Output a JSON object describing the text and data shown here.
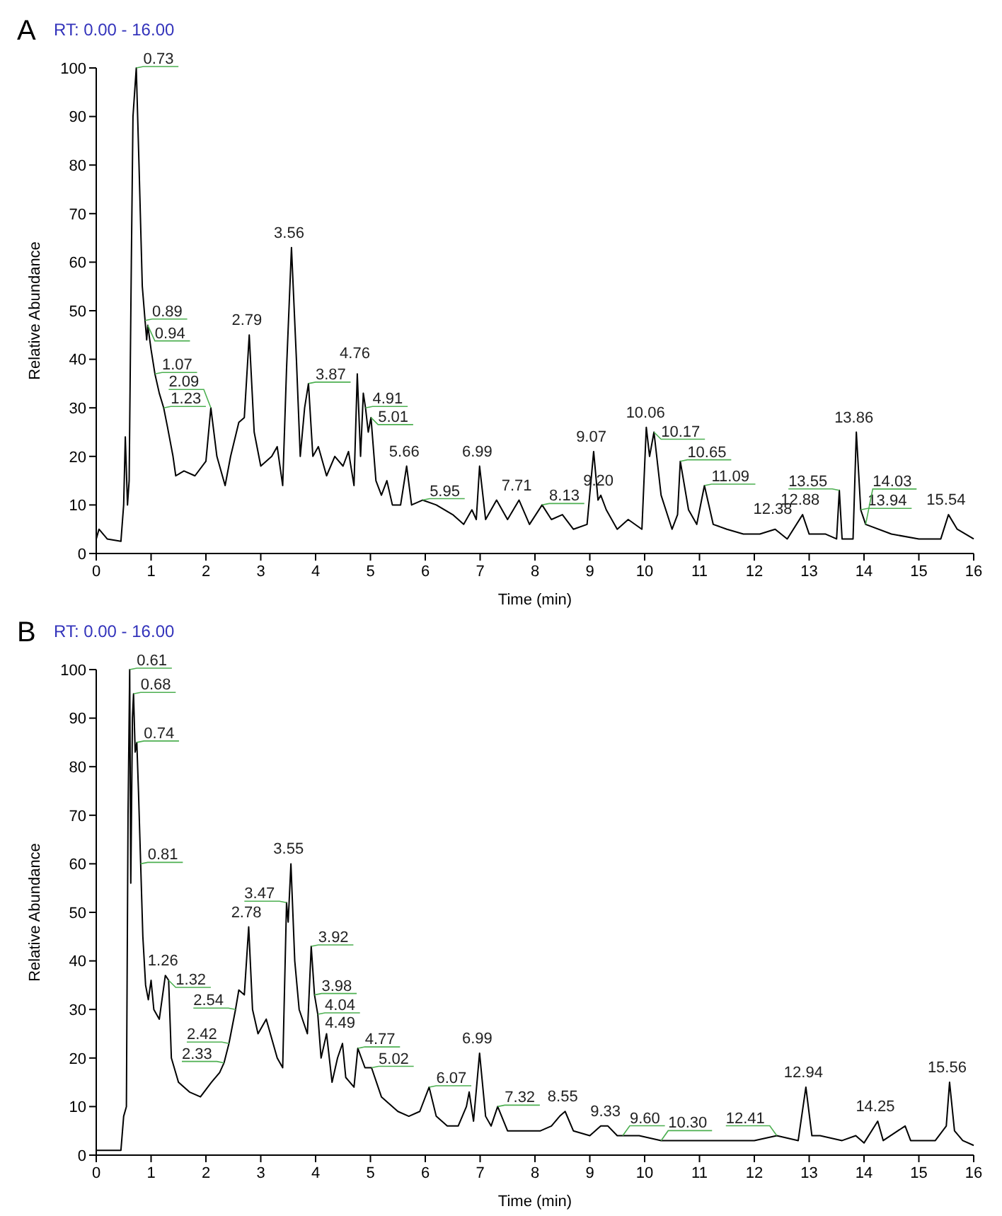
{
  "chart_data": [
    {
      "type": "line",
      "title": "RT: 0.00 - 16.00",
      "xlabel": "Time (min)",
      "ylabel": "Relative Abundance",
      "xlim": [
        0,
        16
      ],
      "xticks": [
        0,
        1,
        2,
        3,
        4,
        5,
        6,
        7,
        8,
        9,
        10,
        11,
        12,
        13,
        14,
        15,
        16
      ],
      "ylim": [
        0,
        100
      ],
      "yticks": [
        0,
        10,
        20,
        30,
        40,
        50,
        60,
        70,
        80,
        90,
        100
      ],
      "grid": false,
      "marker": "none",
      "line_style": "solid",
      "annotations": [
        "A",
        {
          "text": "0.73",
          "x": 0.73,
          "y": 100
        },
        {
          "text": "0.89",
          "x": 0.89,
          "y": 48
        },
        {
          "text": "0.94",
          "x": 0.94,
          "y": 47
        },
        {
          "text": "1.07",
          "x": 1.07,
          "y": 37
        },
        {
          "text": "1.23",
          "x": 1.23,
          "y": 30
        },
        {
          "text": "2.09",
          "x": 2.09,
          "y": 30
        },
        {
          "text": "2.79",
          "x": 2.79,
          "y": 45
        },
        {
          "text": "3.56",
          "x": 3.56,
          "y": 63
        },
        {
          "text": "3.87",
          "x": 3.87,
          "y": 35
        },
        {
          "text": "4.76",
          "x": 4.76,
          "y": 37
        },
        {
          "text": "4.91",
          "x": 4.91,
          "y": 30
        },
        {
          "text": "5.01",
          "x": 5.01,
          "y": 28
        },
        {
          "text": "5.66",
          "x": 5.66,
          "y": 18
        },
        {
          "text": "5.95",
          "x": 5.95,
          "y": 11
        },
        {
          "text": "6.99",
          "x": 6.99,
          "y": 18
        },
        {
          "text": "7.71",
          "x": 7.71,
          "y": 11
        },
        {
          "text": "8.13",
          "x": 8.13,
          "y": 10
        },
        {
          "text": "9.07",
          "x": 9.07,
          "y": 21
        },
        {
          "text": "9.20",
          "x": 9.2,
          "y": 12
        },
        {
          "text": "10.06",
          "x": 10.06,
          "y": 26
        },
        {
          "text": "10.17",
          "x": 10.17,
          "y": 25
        },
        {
          "text": "10.65",
          "x": 10.65,
          "y": 19
        },
        {
          "text": "11.09",
          "x": 11.09,
          "y": 14
        },
        {
          "text": "12.38",
          "x": 12.38,
          "y": 5
        },
        {
          "text": "12.88",
          "x": 12.88,
          "y": 8
        },
        {
          "text": "13.55",
          "x": 13.55,
          "y": 13
        },
        {
          "text": "13.86",
          "x": 13.86,
          "y": 25
        },
        {
          "text": "13.94",
          "x": 13.94,
          "y": 9
        },
        {
          "text": "14.03",
          "x": 14.03,
          "y": 6
        },
        {
          "text": "15.54",
          "x": 15.54,
          "y": 8
        }
      ],
      "series": [
        {
          "color": "#000000",
          "x": [
            0,
            0.05,
            0.2,
            0.45,
            0.5,
            0.53,
            0.57,
            0.6,
            0.64,
            0.67,
            0.73,
            0.78,
            0.84,
            0.89,
            0.92,
            0.94,
            1.0,
            1.07,
            1.15,
            1.23,
            1.3,
            1.4,
            1.45,
            1.6,
            1.8,
            2.0,
            2.09,
            2.2,
            2.35,
            2.45,
            2.6,
            2.7,
            2.79,
            2.88,
            3.0,
            3.2,
            3.3,
            3.4,
            3.47,
            3.56,
            3.65,
            3.72,
            3.8,
            3.87,
            3.95,
            4.05,
            4.2,
            4.35,
            4.5,
            4.6,
            4.7,
            4.76,
            4.82,
            4.87,
            4.91,
            4.96,
            5.01,
            5.1,
            5.2,
            5.3,
            5.4,
            5.55,
            5.66,
            5.75,
            5.95,
            6.2,
            6.5,
            6.7,
            6.85,
            6.93,
            6.99,
            7.1,
            7.3,
            7.5,
            7.71,
            7.9,
            8.13,
            8.3,
            8.5,
            8.7,
            8.95,
            9.07,
            9.15,
            9.2,
            9.3,
            9.5,
            9.7,
            9.95,
            10.03,
            10.09,
            10.17,
            10.3,
            10.5,
            10.6,
            10.65,
            10.8,
            10.95,
            11.09,
            11.25,
            11.5,
            11.8,
            12.1,
            12.38,
            12.6,
            12.88,
            13.0,
            13.3,
            13.5,
            13.55,
            13.6,
            13.8,
            13.86,
            13.94,
            14.03,
            14.5,
            15.0,
            15.4,
            15.54,
            15.7,
            16
          ],
          "values": [
            3,
            5,
            3,
            2.5,
            10,
            24,
            10,
            15,
            60,
            90,
            100,
            80,
            55,
            48,
            44,
            47,
            42,
            37,
            33,
            30,
            26,
            20,
            16,
            17,
            16,
            19,
            30,
            20,
            14,
            20,
            27,
            28,
            45,
            25,
            18,
            20,
            22,
            14,
            38,
            63,
            40,
            20,
            30,
            35,
            20,
            22,
            16,
            20,
            18,
            21,
            14,
            37,
            20,
            33,
            30,
            25,
            28,
            15,
            12,
            15,
            10,
            10,
            18,
            10,
            11,
            10,
            8,
            6,
            9,
            7,
            18,
            7,
            11,
            7,
            11,
            6,
            10,
            7,
            8,
            5,
            6,
            21,
            11,
            12,
            9,
            5,
            7,
            5,
            26,
            20,
            25,
            12,
            5,
            8,
            19,
            9,
            6,
            14,
            6,
            5,
            4,
            4,
            5,
            3,
            8,
            4,
            4,
            3,
            13,
            3,
            3,
            25,
            9,
            6,
            4,
            3,
            3,
            8,
            5,
            3
          ]
        }
      ]
    },
    {
      "type": "line",
      "title": "RT: 0.00 - 16.00",
      "xlabel": "Time (min)",
      "ylabel": "Relative Abundance",
      "xlim": [
        0,
        16
      ],
      "xticks": [
        0,
        1,
        2,
        3,
        4,
        5,
        6,
        7,
        8,
        9,
        10,
        11,
        12,
        13,
        14,
        15,
        16
      ],
      "ylim": [
        0,
        100
      ],
      "yticks": [
        0,
        10,
        20,
        30,
        40,
        50,
        60,
        70,
        80,
        90,
        100
      ],
      "grid": false,
      "marker": "none",
      "line_style": "solid",
      "annotations": [
        "B",
        {
          "text": "0.61",
          "x": 0.61,
          "y": 100
        },
        {
          "text": "0.68",
          "x": 0.68,
          "y": 95
        },
        {
          "text": "0.74",
          "x": 0.74,
          "y": 85
        },
        {
          "text": "0.81",
          "x": 0.81,
          "y": 60
        },
        {
          "text": "1.26",
          "x": 1.26,
          "y": 37
        },
        {
          "text": "1.32",
          "x": 1.32,
          "y": 36
        },
        {
          "text": "2.33",
          "x": 2.33,
          "y": 19
        },
        {
          "text": "2.42",
          "x": 2.42,
          "y": 23
        },
        {
          "text": "2.54",
          "x": 2.54,
          "y": 30
        },
        {
          "text": "2.78",
          "x": 2.78,
          "y": 47
        },
        {
          "text": "3.47",
          "x": 3.47,
          "y": 52
        },
        {
          "text": "3.55",
          "x": 3.55,
          "y": 60
        },
        {
          "text": "3.92",
          "x": 3.92,
          "y": 43
        },
        {
          "text": "3.98",
          "x": 3.98,
          "y": 33
        },
        {
          "text": "4.04",
          "x": 4.04,
          "y": 29
        },
        {
          "text": "4.49",
          "x": 4.49,
          "y": 23
        },
        {
          "text": "4.77",
          "x": 4.77,
          "y": 22
        },
        {
          "text": "5.02",
          "x": 5.02,
          "y": 18
        },
        {
          "text": "6.07",
          "x": 6.07,
          "y": 14
        },
        {
          "text": "6.99",
          "x": 6.99,
          "y": 21
        },
        {
          "text": "7.32",
          "x": 7.32,
          "y": 10
        },
        {
          "text": "8.55",
          "x": 8.55,
          "y": 9
        },
        {
          "text": "9.33",
          "x": 9.33,
          "y": 6
        },
        {
          "text": "9.60",
          "x": 9.6,
          "y": 4
        },
        {
          "text": "10.30",
          "x": 10.3,
          "y": 3
        },
        {
          "text": "12.41",
          "x": 12.41,
          "y": 4
        },
        {
          "text": "12.94",
          "x": 12.94,
          "y": 14
        },
        {
          "text": "14.25",
          "x": 14.25,
          "y": 7
        },
        {
          "text": "15.56",
          "x": 15.56,
          "y": 15
        }
      ],
      "series": [
        {
          "color": "#000000",
          "x": [
            0,
            0.45,
            0.5,
            0.55,
            0.58,
            0.61,
            0.63,
            0.66,
            0.68,
            0.71,
            0.74,
            0.77,
            0.81,
            0.85,
            0.9,
            0.95,
            1.0,
            1.05,
            1.15,
            1.26,
            1.32,
            1.37,
            1.5,
            1.7,
            1.9,
            2.1,
            2.25,
            2.33,
            2.42,
            2.54,
            2.6,
            2.7,
            2.78,
            2.85,
            2.95,
            3.1,
            3.3,
            3.4,
            3.47,
            3.5,
            3.55,
            3.62,
            3.7,
            3.85,
            3.92,
            3.98,
            4.04,
            4.1,
            4.2,
            4.3,
            4.4,
            4.49,
            4.55,
            4.7,
            4.77,
            4.9,
            5.02,
            5.2,
            5.5,
            5.7,
            5.9,
            6.07,
            6.2,
            6.4,
            6.6,
            6.75,
            6.8,
            6.88,
            6.99,
            7.1,
            7.2,
            7.32,
            7.5,
            7.8,
            8.1,
            8.3,
            8.45,
            8.55,
            8.7,
            9.0,
            9.2,
            9.33,
            9.5,
            9.6,
            9.9,
            10.3,
            10.7,
            11.2,
            11.6,
            12.0,
            12.41,
            12.8,
            12.94,
            13.05,
            13.2,
            13.6,
            13.85,
            14.0,
            14.25,
            14.35,
            14.75,
            14.85,
            15.3,
            15.5,
            15.56,
            15.65,
            15.8,
            16
          ],
          "values": [
            1,
            1,
            8,
            10,
            70,
            100,
            56,
            90,
            95,
            83,
            85,
            75,
            60,
            45,
            35,
            32,
            36,
            30,
            28,
            37,
            36,
            20,
            15,
            13,
            12,
            15,
            17,
            19,
            23,
            30,
            34,
            33,
            47,
            30,
            25,
            28,
            20,
            18,
            52,
            48,
            60,
            40,
            30,
            25,
            43,
            33,
            29,
            20,
            25,
            15,
            20,
            23,
            16,
            14,
            22,
            18,
            18,
            12,
            9,
            8,
            9,
            14,
            8,
            6,
            6,
            10,
            13,
            7,
            21,
            8,
            6,
            10,
            5,
            5,
            5,
            6,
            8,
            9,
            5,
            4,
            6,
            6,
            4,
            4,
            4,
            3,
            3,
            3,
            3,
            3,
            4,
            3,
            14,
            4,
            4,
            3,
            4,
            2.5,
            7,
            3,
            6,
            3,
            3,
            6,
            15,
            5,
            3,
            2
          ]
        }
      ]
    }
  ]
}
